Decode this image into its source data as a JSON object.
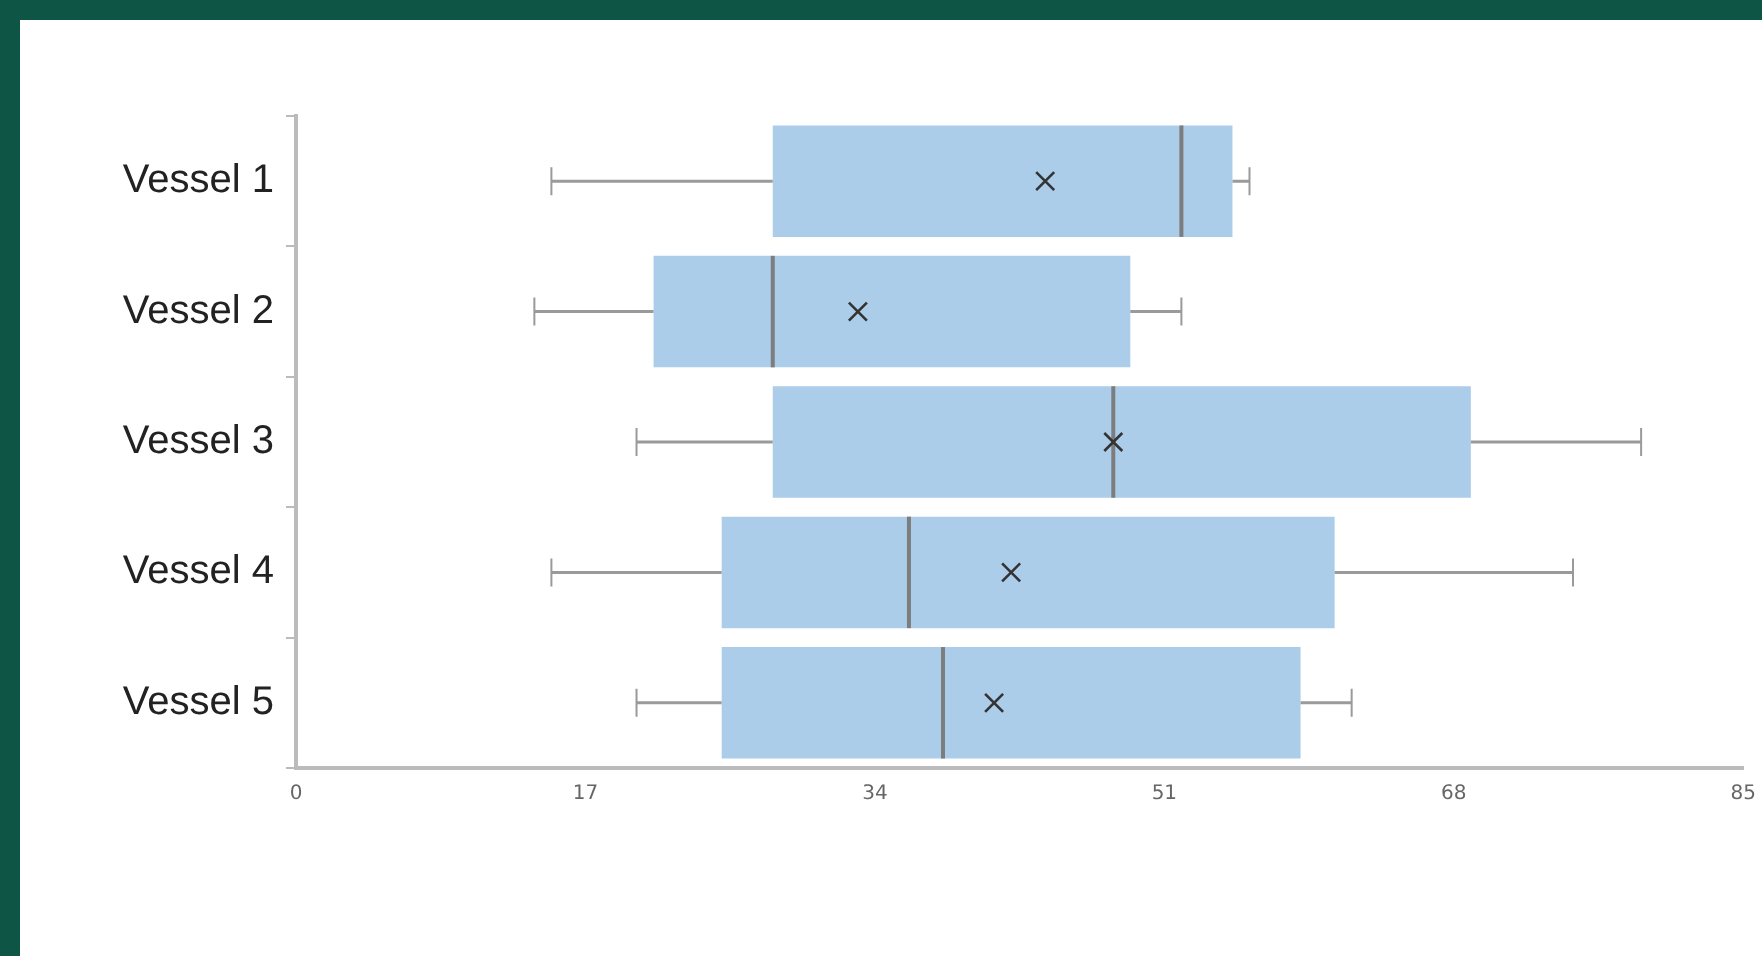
{
  "chart_data": {
    "type": "box",
    "orientation": "horizontal",
    "categories": [
      "Vessel 1",
      "Vessel 2",
      "Vessel 3",
      "Vessel 4",
      "Vessel 5"
    ],
    "boxes": [
      {
        "low": 15,
        "q1": 28,
        "median": 52,
        "q3": 55,
        "high": 56,
        "mean": 44
      },
      {
        "low": 14,
        "q1": 21,
        "median": 28,
        "q3": 49,
        "high": 52,
        "mean": 33
      },
      {
        "low": 20,
        "q1": 28,
        "median": 48,
        "q3": 69,
        "high": 79,
        "mean": 48
      },
      {
        "low": 15,
        "q1": 25,
        "median": 36,
        "q3": 61,
        "high": 75,
        "mean": 42
      },
      {
        "low": 20,
        "q1": 25,
        "median": 38,
        "q3": 59,
        "high": 62,
        "mean": 41
      }
    ],
    "color": "#abcdea",
    "xlim": [
      0,
      85
    ],
    "xticks": [
      0,
      17,
      34,
      51,
      68,
      85
    ],
    "grid": false,
    "marker": "cross"
  }
}
